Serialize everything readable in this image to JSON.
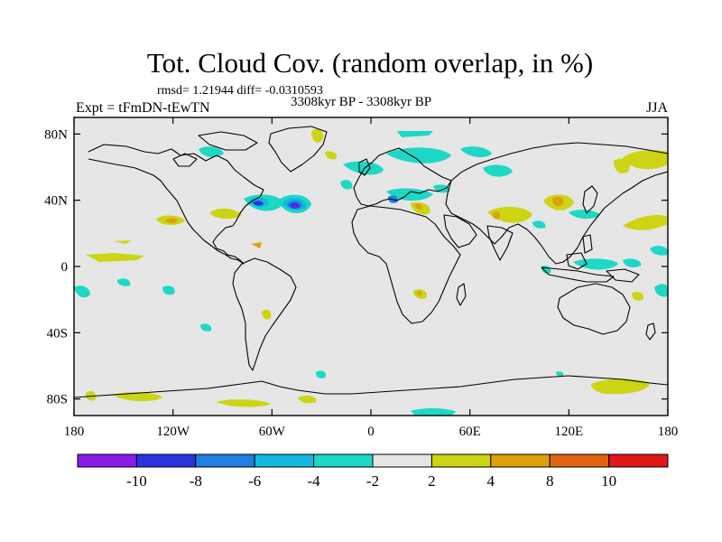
{
  "title": "Tot. Cloud Cov. (random overlap, in %)",
  "stats": "rmsd= 1.21944 diff= -0.0310593",
  "left_label": "Expt = tFmDN-tEwTN",
  "center_label": "3308kyr BP - 3308kyr BP",
  "right_label": "JJA",
  "axes": {
    "lat_ticks": [
      "80N",
      "40N",
      "0",
      "40S",
      "80S"
    ],
    "lat_values": [
      80,
      40,
      0,
      -40,
      -80
    ],
    "lon_ticks": [
      "180",
      "120W",
      "60W",
      "0",
      "60E",
      "120E",
      "180"
    ],
    "lon_values": [
      -180,
      -120,
      -60,
      0,
      60,
      120,
      180
    ],
    "lat_range": [
      -90,
      90
    ],
    "lon_range": [
      -180,
      180
    ]
  },
  "colorbar": {
    "colors": [
      "#8a1ae8",
      "#2a33e0",
      "#1f7fe2",
      "#12b8e0",
      "#1dd8c6",
      "#e6e6e6",
      "#cdd414",
      "#e0a00c",
      "#e06410",
      "#e01818"
    ],
    "labels": [
      "-10",
      "-8",
      "-6",
      "-4",
      "-2",
      "2",
      "4",
      "8",
      "10"
    ]
  },
  "anomaly_blobs": [
    {
      "lon": -45,
      "lat": 37,
      "level": "-8"
    },
    {
      "lon": -66,
      "lat": 40,
      "level": "-6"
    },
    {
      "lon": -150,
      "lat": 10,
      "level": "2"
    },
    {
      "lon": 80,
      "lat": 33,
      "level": "4"
    },
    {
      "lon": 114,
      "lat": 38,
      "level": "4"
    },
    {
      "lon": 165,
      "lat": 30,
      "level": "2"
    },
    {
      "lon": 140,
      "lat": 68,
      "level": "2"
    },
    {
      "lon": 145,
      "lat": -70,
      "level": "2"
    },
    {
      "lon": -130,
      "lat": -77,
      "level": "2"
    },
    {
      "lon": 30,
      "lat": -17,
      "level": "4"
    },
    {
      "lon": -70,
      "lat": 70,
      "level": "-2"
    },
    {
      "lon": 25,
      "lat": 55,
      "level": "-2"
    },
    {
      "lon": 10,
      "lat": 40,
      "level": "-2"
    }
  ]
}
